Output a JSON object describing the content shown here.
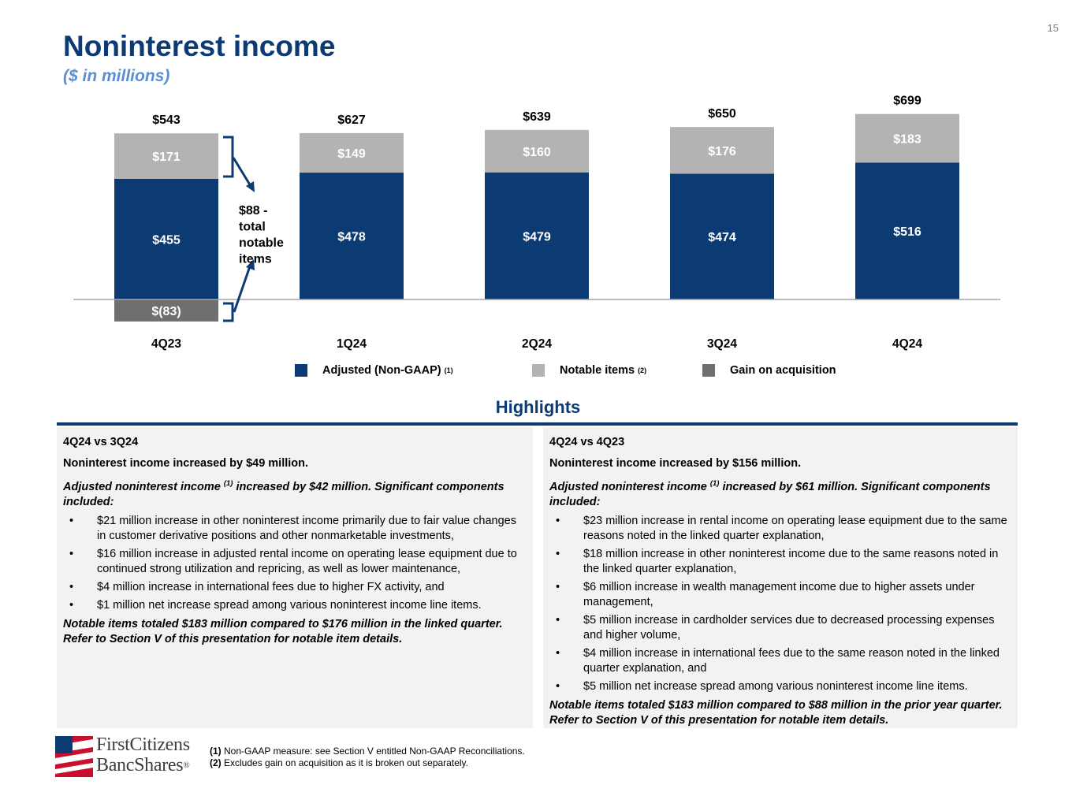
{
  "page_number": "15",
  "title": "Noninterest income",
  "subtitle": "($ in millions)",
  "chart_data": {
    "type": "bar",
    "stacked": true,
    "categories": [
      "4Q23",
      "1Q24",
      "2Q24",
      "3Q24",
      "4Q24"
    ],
    "series": [
      {
        "name": "Adjusted (Non-GAAP)",
        "values": [
          455,
          478,
          479,
          474,
          516
        ],
        "labels": [
          "$455",
          "$478",
          "$479",
          "$474",
          "$516"
        ]
      },
      {
        "name": "Notable items",
        "values": [
          171,
          149,
          160,
          176,
          183
        ],
        "labels": [
          "$171",
          "$149",
          "$160",
          "$176",
          "$183"
        ]
      },
      {
        "name": "Gain on acquisition",
        "values": [
          -83,
          0,
          0,
          0,
          0
        ],
        "labels": [
          "$(83)",
          "",
          "",
          "",
          ""
        ]
      }
    ],
    "totals": [
      543,
      627,
      639,
      650,
      699
    ],
    "total_labels": [
      "$543",
      "$627",
      "$639",
      "$650",
      "$699"
    ],
    "annotation": "$88 - total notable items",
    "colors": {
      "Adjusted (Non-GAAP)": "#0c3a73",
      "Notable items": "#b3b3b3",
      "Gain on acquisition": "#6f6f6f"
    },
    "ylim": [
      -83,
      699
    ],
    "grid": false
  },
  "legend": [
    {
      "label": "Adjusted (Non-GAAP)",
      "sup": "(1)",
      "color": "#0c3a73"
    },
    {
      "label": "Notable items",
      "sup": "(2)",
      "color": "#b3b3b3"
    },
    {
      "label": "Gain on acquisition",
      "sup": "",
      "color": "#6f6f6f"
    }
  ],
  "highlights": {
    "title": "Highlights",
    "left": {
      "heading": "4Q24 vs 3Q24",
      "lead": "Noninterest income increased by $49 million.",
      "adj_start": "Adjusted noninterest income",
      "adj_sup": "(1)",
      "adj_end": "increased by $42 million. Significant components included:",
      "bullets": [
        "$21 million increase in other noninterest income primarily due to fair value changes in customer derivative positions and other nonmarketable investments,",
        "$16 million increase in adjusted rental income on operating lease equipment due to continued strong utilization and repricing, as well as lower maintenance,",
        "$4 million increase in international fees due to higher FX activity, and",
        "$1 million net increase spread among various noninterest income line items."
      ],
      "notable": "Notable items totaled $183 million compared to $176 million in the linked quarter. Refer to Section V of this presentation for notable item details."
    },
    "right": {
      "heading": "4Q24 vs 4Q23",
      "lead": "Noninterest income increased by $156 million.",
      "adj_start": "Adjusted noninterest income",
      "adj_sup": "(1)",
      "adj_end": "increased by $61 million. Significant components included:",
      "bullets": [
        "$23 million increase in rental income on operating lease equipment due to the same reasons noted in the linked quarter explanation,",
        "$18 million increase in other noninterest income due to the same reasons noted in the linked quarter explanation,",
        "$6 million increase in wealth management income due to higher assets under management,",
        "$5 million increase in cardholder services due to decreased processing expenses and higher volume,",
        "$4 million increase in international fees due to the same reason noted in the linked quarter explanation, and",
        "$5 million net increase spread among various noninterest income line items."
      ],
      "notable": "Notable items totaled $183 million compared to $88 million in the prior year quarter. Refer to Section V of this presentation for notable item details."
    }
  },
  "bullet_char": "•",
  "footnotes": [
    {
      "num": "(1)",
      "text": "Non-GAAP measure: see Section V entitled Non-GAAP Reconciliations."
    },
    {
      "num": "(2)",
      "text": "Excludes gain on acquisition as it is broken out separately."
    }
  ],
  "logo": {
    "line1": "FirstCitizens",
    "line2": "BancShares",
    "mark": "®"
  }
}
